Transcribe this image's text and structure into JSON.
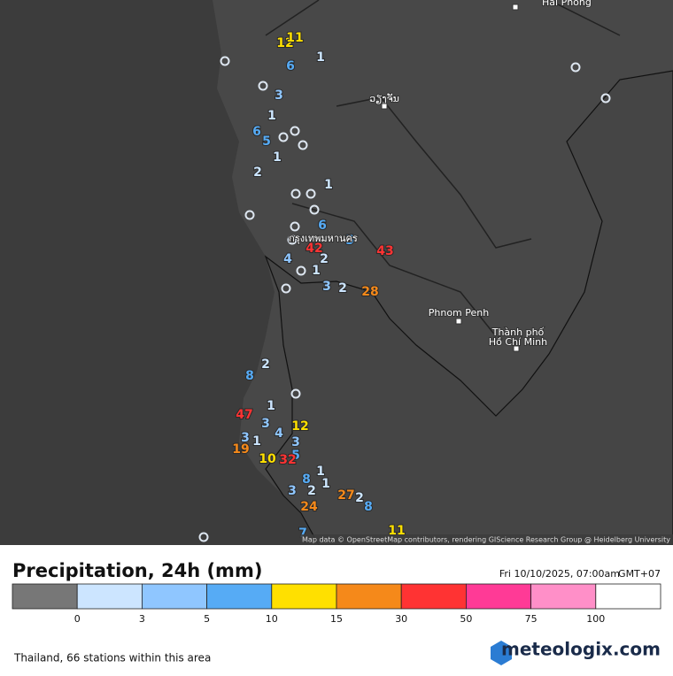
{
  "map": {
    "cities": [
      "Hai Phong",
      "ວຽງຈັນ",
      "กรุงเทพมหานคร",
      "Phnom Penh",
      "Thành phố",
      "Hồ Chí Minh"
    ],
    "attribution": "Map data © OpenStreetMap contributors, rendering GIScience Research Group @ Heidelberg University",
    "stations": [
      12,
      11,
      0,
      6,
      1,
      0,
      3,
      1,
      0,
      6,
      5,
      0,
      0,
      1,
      2,
      1,
      0,
      0,
      0,
      0,
      0,
      6,
      0,
      5,
      42,
      43,
      4,
      2,
      1,
      0,
      0,
      3,
      2,
      28,
      2,
      8,
      0,
      1,
      47,
      3,
      12,
      4,
      3,
      1,
      3,
      19,
      5,
      10,
      32,
      1,
      8,
      1,
      2,
      3,
      27,
      2,
      8,
      24,
      11,
      7,
      0,
      0,
      0
    ]
  },
  "legend": {
    "title": "Precipitation, 24h (mm)",
    "date": "Fri 10/10/2025, 07:00am",
    "timezone": "GMT+07",
    "ticks": [
      0,
      3,
      5,
      10,
      15,
      30,
      50,
      75,
      100
    ],
    "colors": [
      "#777777",
      "#cce5ff",
      "#8fc6ff",
      "#56abf5",
      "#ffe000",
      "#f5891a",
      "#ff3333",
      "#ff3a96",
      "#ff8fc8",
      "#ffffff"
    ]
  },
  "footer": {
    "info": "Thailand, 66 stations within this area",
    "brand": "meteologix.com"
  }
}
